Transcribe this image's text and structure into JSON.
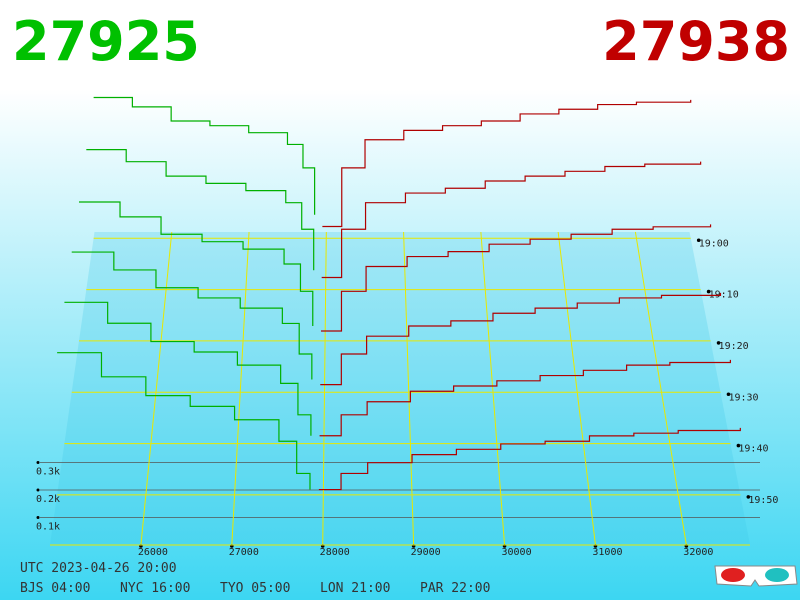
{
  "chart_data": {
    "type": "depth3d",
    "bid": 27925,
    "ask": 27938,
    "bid_color": "#00b000",
    "ask_color": "#b00000",
    "xlim": [
      25000,
      32700
    ],
    "xticks": [
      26000,
      27000,
      28000,
      29000,
      30000,
      31000,
      32000
    ],
    "zticks": [
      {
        "value": 0.1,
        "label": "0.1k"
      },
      {
        "value": 0.2,
        "label": "0.2k"
      },
      {
        "value": 0.3,
        "label": "0.3k"
      }
    ],
    "time_ticks": [
      "19:00",
      "19:10",
      "19:20",
      "19:30",
      "19:40",
      "19:50"
    ],
    "bid_prices": [
      25000,
      25500,
      26000,
      26500,
      27000,
      27500,
      27700,
      27850
    ],
    "ask_prices": [
      27950,
      28200,
      28500,
      29000,
      29500,
      30000,
      30500,
      31000,
      31500,
      32000,
      32700
    ],
    "slices": [
      {
        "bids": [
          0.6,
          0.56,
          0.5,
          0.48,
          0.45,
          0.4,
          0.3,
          0.1
        ],
        "asks": [
          0.05,
          0.3,
          0.42,
          0.46,
          0.48,
          0.5,
          0.53,
          0.55,
          0.57,
          0.58,
          0.59
        ]
      },
      {
        "bids": [
          0.58,
          0.53,
          0.47,
          0.44,
          0.41,
          0.36,
          0.25,
          0.08
        ],
        "asks": [
          0.05,
          0.25,
          0.36,
          0.4,
          0.42,
          0.45,
          0.47,
          0.49,
          0.51,
          0.52,
          0.53
        ]
      },
      {
        "bids": [
          0.56,
          0.5,
          0.43,
          0.4,
          0.37,
          0.31,
          0.2,
          0.06
        ],
        "asks": [
          0.04,
          0.2,
          0.3,
          0.34,
          0.36,
          0.39,
          0.41,
          0.43,
          0.45,
          0.46,
          0.47
        ]
      },
      {
        "bids": [
          0.55,
          0.48,
          0.41,
          0.37,
          0.33,
          0.27,
          0.15,
          0.05
        ],
        "asks": [
          0.03,
          0.15,
          0.22,
          0.26,
          0.28,
          0.31,
          0.33,
          0.35,
          0.37,
          0.38,
          0.39
        ]
      },
      {
        "bids": [
          0.54,
          0.46,
          0.39,
          0.35,
          0.3,
          0.23,
          0.11,
          0.03
        ],
        "asks": [
          0.03,
          0.11,
          0.16,
          0.2,
          0.22,
          0.24,
          0.26,
          0.28,
          0.3,
          0.31,
          0.32
        ]
      },
      {
        "bids": [
          0.53,
          0.44,
          0.37,
          0.33,
          0.28,
          0.2,
          0.08,
          0.02
        ],
        "asks": [
          0.02,
          0.08,
          0.12,
          0.15,
          0.17,
          0.19,
          0.2,
          0.22,
          0.23,
          0.24,
          0.25
        ]
      }
    ],
    "footer": {
      "utc": "UTC 2023-04-26 20:00",
      "zones": [
        "BJS 04:00",
        "NYC 16:00",
        "TYO 05:00",
        "LON 21:00",
        "PAR 22:00"
      ]
    }
  }
}
